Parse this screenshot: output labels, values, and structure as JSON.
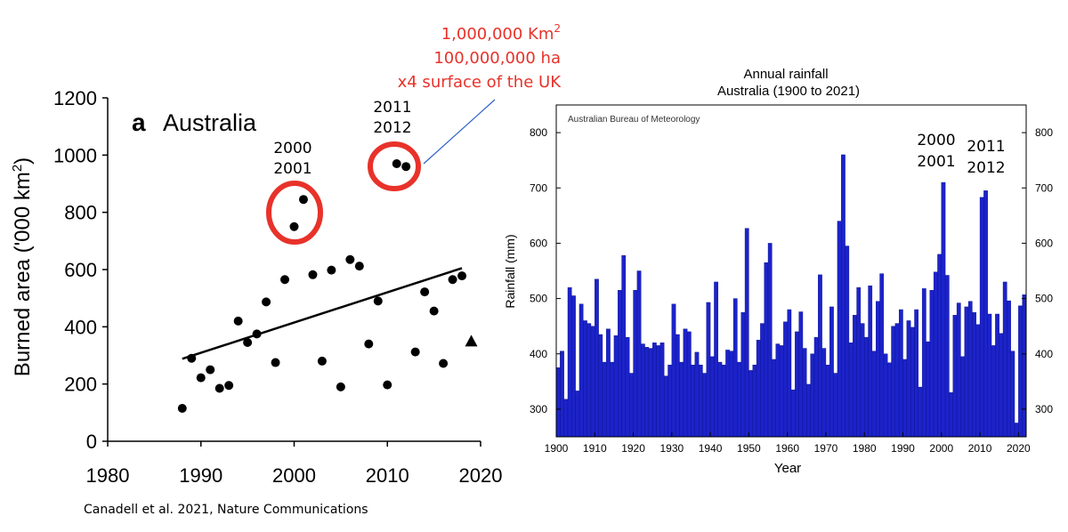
{
  "chart_data": [
    {
      "type": "scatter",
      "panel_letter": "a",
      "title": "Australia",
      "ylabel": "Burned area ('000 km²)",
      "ylabel_main": "Burned area ('000 km",
      "ylabel_sup": "2",
      "ylabel_close": ")",
      "xlim": [
        1980,
        2020
      ],
      "ylim": [
        0,
        1200
      ],
      "xticks": [
        "1980",
        "1990",
        "2000",
        "2010",
        "2020"
      ],
      "yticks": [
        "0",
        "200",
        "400",
        "600",
        "800",
        "1000",
        "1200"
      ],
      "series": [
        {
          "x": [
            1988,
            1989,
            1990,
            1991,
            1992,
            1993,
            1994,
            1995,
            1996,
            1997,
            1998,
            1999,
            2000,
            2001,
            2002,
            2003,
            2004,
            2005,
            2006,
            2007,
            2008,
            2009,
            2010,
            2011,
            2012,
            2013,
            2014,
            2015,
            2016,
            2017,
            2018
          ],
          "y": [
            115,
            290,
            222,
            250,
            185,
            195,
            420,
            345,
            375,
            487,
            275,
            565,
            750,
            845,
            582,
            280,
            598,
            190,
            635,
            612,
            340,
            490,
            197,
            970,
            960,
            312,
            522,
            455,
            272,
            565,
            578
          ]
        }
      ],
      "triangle_marker": {
        "x": 2019,
        "y": 350
      },
      "trend_line": {
        "x": [
          1988,
          2018
        ],
        "y": [
          288,
          605
        ]
      },
      "year_labels": [
        {
          "line1": "2000",
          "line2": "2001"
        },
        {
          "line1": "2011",
          "line2": "2012"
        }
      ],
      "citation": "Canadell et al. 2021, Nature Communications"
    },
    {
      "type": "bar",
      "title_line1": "Annual rainfall",
      "title_line2": "Australia (1900 to 2021)",
      "source_text": "Australian Bureau of Meteorology",
      "xlabel": "Year",
      "ylabel": "Rainfall (mm)",
      "xlim": [
        1900,
        2021
      ],
      "ylim": [
        250,
        850
      ],
      "xticks": [
        "1900",
        "1910",
        "1920",
        "1930",
        "1940",
        "1950",
        "1960",
        "1970",
        "1980",
        "1990",
        "2000",
        "2010",
        "2020"
      ],
      "yticks": [
        "300",
        "400",
        "500",
        "600",
        "700",
        "800"
      ],
      "x_start": 1900,
      "values": [
        375,
        405,
        318,
        520,
        505,
        333,
        490,
        460,
        455,
        450,
        535,
        435,
        385,
        445,
        385,
        433,
        515,
        578,
        430,
        365,
        515,
        550,
        418,
        412,
        410,
        420,
        415,
        420,
        360,
        380,
        490,
        435,
        385,
        445,
        440,
        380,
        403,
        380,
        365,
        493,
        395,
        530,
        385,
        380,
        407,
        405,
        500,
        385,
        475,
        627,
        370,
        380,
        425,
        455,
        565,
        600,
        390,
        418,
        415,
        458,
        480,
        335,
        440,
        476,
        410,
        345,
        400,
        430,
        543,
        410,
        380,
        485,
        365,
        640,
        760,
        595,
        420,
        470,
        520,
        455,
        430,
        523,
        405,
        495,
        545,
        400,
        384,
        450,
        455,
        480,
        390,
        460,
        448,
        480,
        340,
        518,
        422,
        515,
        548,
        580,
        710,
        542,
        330,
        470,
        492,
        395,
        485,
        495,
        475,
        453,
        683,
        695,
        472,
        415,
        472,
        437,
        530,
        496,
        405,
        275,
        487,
        507
      ],
      "year_labels": [
        {
          "line1": "2000",
          "line2": "2001"
        },
        {
          "line1": "2011",
          "line2": "2012"
        }
      ]
    }
  ],
  "callout": {
    "line1": "1,000,000 Km",
    "line1_sup": "2",
    "line2": "100,000,000 ha",
    "line3": "x4 surface of the UK"
  },
  "colors": {
    "scatter_point": "#000000",
    "highlight_circle": "#e8322a",
    "callout_text": "#e8322a",
    "callout_line": "#2f62c8",
    "bar_fill": "#1c23c9",
    "bar_stroke": "#0a0f8a"
  }
}
